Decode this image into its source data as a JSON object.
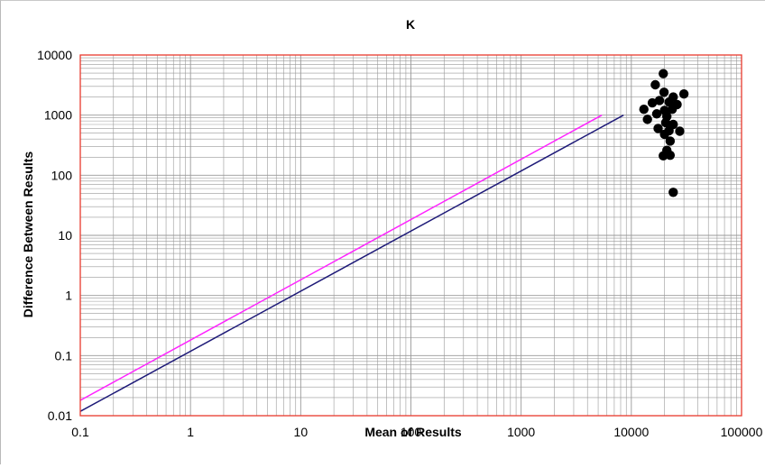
{
  "chart_data": {
    "type": "scatter",
    "title": "K",
    "xlabel": "Mean of Results",
    "ylabel": "Difference Between Results",
    "xscale": "log",
    "yscale": "log",
    "xlim": [
      0.1,
      100000
    ],
    "ylim": [
      0.01,
      10000
    ],
    "xticks": [
      "0.1",
      "1",
      "10",
      "100",
      "1000",
      "10000",
      "100000"
    ],
    "yticks": [
      "0.01",
      "0.1",
      "1",
      "10",
      "100",
      "1000",
      "10000"
    ],
    "grid": true,
    "colors": {
      "plot_border": "#e8392c",
      "grid": "#999999",
      "points": "#000000"
    },
    "series": [
      {
        "type": "line",
        "color": "#ff22ff",
        "x": [
          0.1,
          5400
        ],
        "y": [
          0.018,
          1000
        ]
      },
      {
        "type": "line",
        "color": "#1e1a78",
        "x": [
          0.1,
          8500
        ],
        "y": [
          0.0118,
          1000
        ]
      },
      {
        "type": "scatter",
        "color": "#000000",
        "points": [
          [
            19500,
            4900
          ],
          [
            16500,
            3200
          ],
          [
            19800,
            2400
          ],
          [
            30000,
            2250
          ],
          [
            24000,
            2000
          ],
          [
            18000,
            1750
          ],
          [
            15500,
            1600
          ],
          [
            22000,
            1650
          ],
          [
            26000,
            1500
          ],
          [
            20000,
            1200
          ],
          [
            13000,
            1250
          ],
          [
            23500,
            1250
          ],
          [
            17000,
            1050
          ],
          [
            21000,
            950
          ],
          [
            14000,
            850
          ],
          [
            20500,
            750
          ],
          [
            24000,
            700
          ],
          [
            17500,
            600
          ],
          [
            22000,
            550
          ],
          [
            27500,
            540
          ],
          [
            20000,
            480
          ],
          [
            22500,
            370
          ],
          [
            21000,
            260
          ],
          [
            19500,
            210
          ],
          [
            22500,
            215
          ],
          [
            24000,
            52
          ]
        ]
      }
    ]
  }
}
